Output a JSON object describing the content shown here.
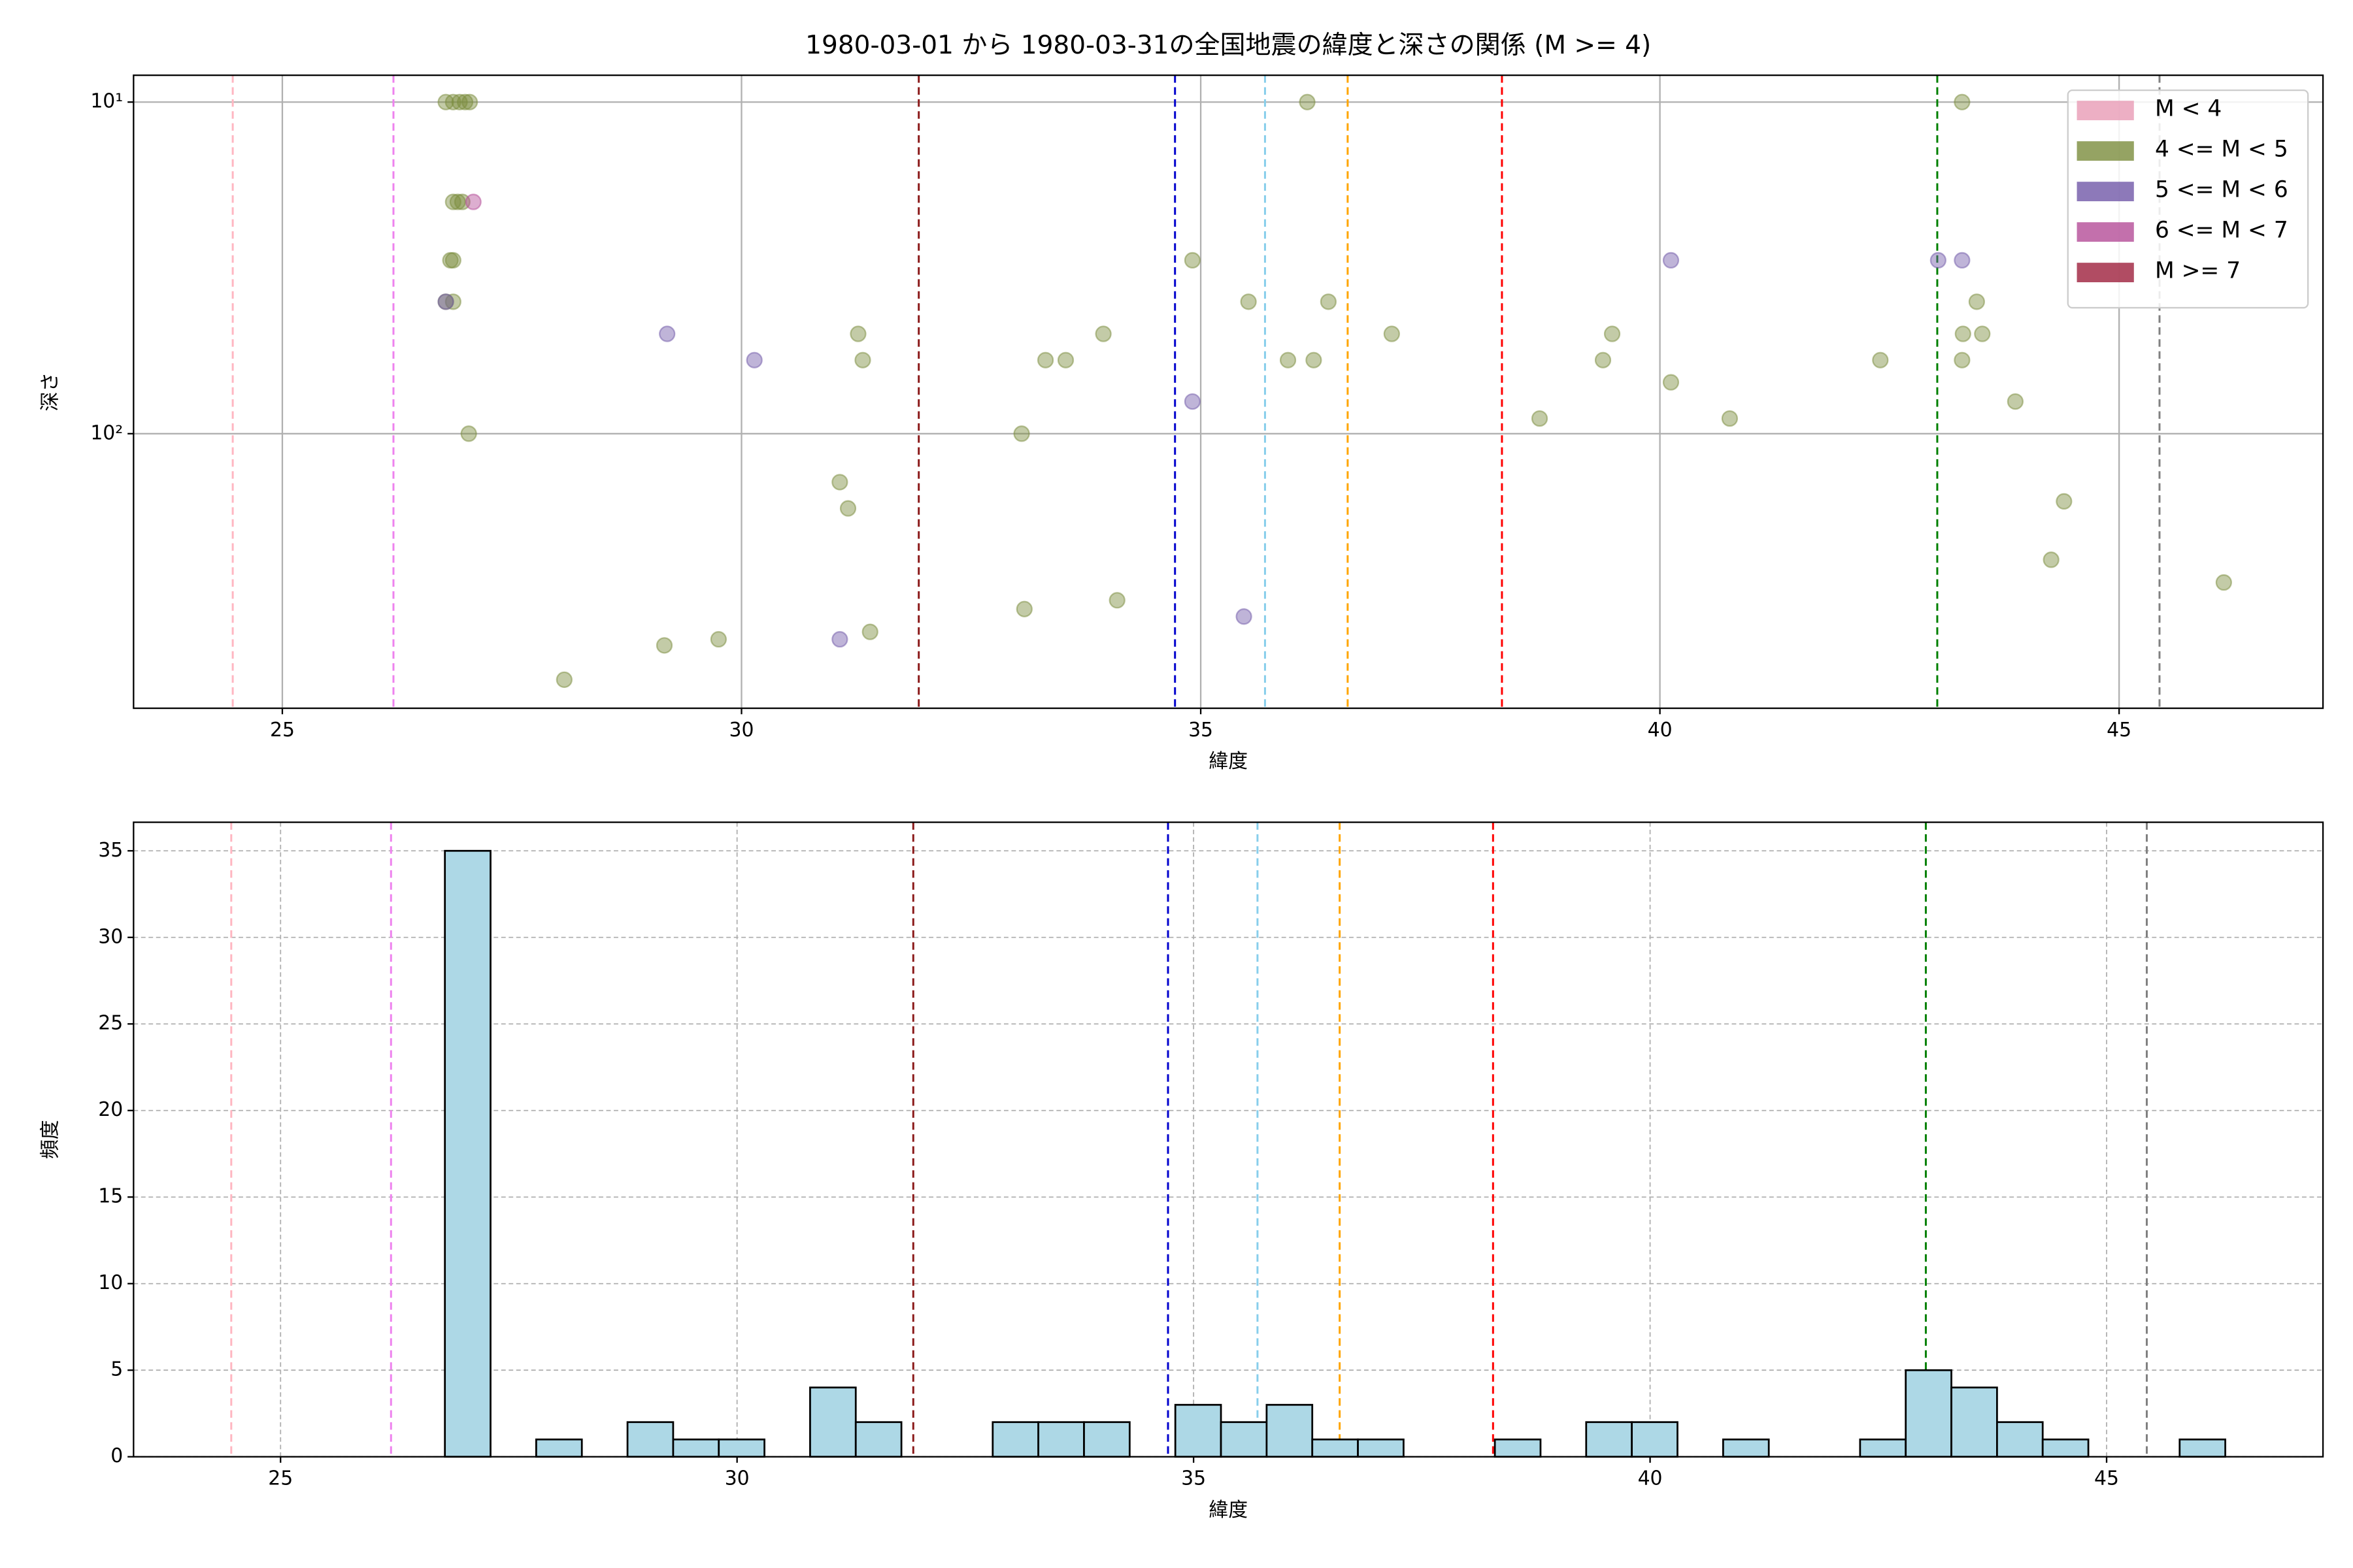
{
  "chart_data": [
    {
      "type": "scatter",
      "title": "1980-03-01 から 1980-03-31の全国地震の緯度と深さの関係 (M >= 4)",
      "x_label": "緯度",
      "y_label": "深さ",
      "xlim": [
        23.38,
        47.22
      ],
      "xticks": [
        25,
        30,
        35,
        40,
        45
      ],
      "ylim": [
        8.3,
        673
      ],
      "y_log": true,
      "y_inverted": true,
      "yticks": [
        {
          "value": 10,
          "label": "10¹"
        },
        {
          "value": 100,
          "label": "10²"
        }
      ],
      "grid": true,
      "legend": "upper right",
      "vlines": [
        {
          "x": 24.46,
          "color": "#ffb6c1"
        },
        {
          "x": 26.21,
          "color": "#ee82ee"
        },
        {
          "x": 31.93,
          "color": "#8b1a1a"
        },
        {
          "x": 34.72,
          "color": "#0000cd"
        },
        {
          "x": 35.7,
          "color": "#87ceeb"
        },
        {
          "x": 36.6,
          "color": "#ffa500"
        },
        {
          "x": 38.28,
          "color": "#ff0000"
        },
        {
          "x": 43.02,
          "color": "#007f00"
        },
        {
          "x": 45.44,
          "color": "#808080"
        }
      ],
      "series": [
        {
          "name": "M < 4",
          "color": "#e89bb5",
          "x": [],
          "values": []
        },
        {
          "name": "4 <= M < 5",
          "color": "#7a8c3c",
          "x": [
            26.78,
            26.86,
            26.93,
            26.99,
            27.04,
            26.86,
            26.91,
            26.96,
            26.83,
            26.86,
            26.78,
            26.86,
            27.03,
            36.16,
            43.29,
            34.91,
            35.52,
            36.39,
            31.27,
            31.32,
            33.94,
            37.08,
            39.48,
            33.31,
            33.53,
            35.95,
            36.23,
            39.38,
            42.4,
            43.29,
            43.3,
            43.51,
            43.45,
            40.12,
            38.69,
            40.76,
            43.87,
            33.05,
            31.07,
            31.16,
            44.4,
            44.26,
            46.14,
            34.09,
            33.08,
            31.4,
            29.75,
            29.16,
            28.07
          ],
          "values": [
            10,
            10,
            10,
            10,
            10,
            20,
            20,
            20,
            30,
            30,
            40,
            40,
            100,
            10,
            10,
            30,
            40,
            40,
            50,
            60,
            50,
            50,
            50,
            60,
            60,
            60,
            60,
            60,
            60,
            60,
            50,
            50,
            40,
            70,
            90,
            90,
            80,
            100,
            140,
            168,
            160,
            240,
            281,
            318,
            338,
            396,
            417,
            435,
            552
          ]
        },
        {
          "name": "5 <= M < 6",
          "color": "#7058a8",
          "x": [
            29.19,
            30.14,
            34.91,
            40.12,
            43.03,
            43.29,
            35.47,
            31.07,
            26.78
          ],
          "values": [
            50,
            60,
            80,
            30,
            30,
            30,
            356,
            417,
            40
          ]
        },
        {
          "name": "6 <= M < 7",
          "color": "#b44c97",
          "x": [
            27.08
          ],
          "values": [
            20
          ]
        },
        {
          "name": "M >= 7",
          "color": "#9e1f3c",
          "x": [],
          "values": []
        }
      ]
    },
    {
      "type": "histogram",
      "x_label": "緯度",
      "y_label": "頻度",
      "xlim": [
        23.39,
        47.37
      ],
      "xticks": [
        25,
        30,
        35,
        40,
        45
      ],
      "ylim": [
        0,
        36.65
      ],
      "yticks": [
        0,
        5,
        10,
        15,
        20,
        25,
        30,
        35
      ],
      "grid": true,
      "color": "#add8e6",
      "vlines": [
        {
          "x": 24.46,
          "color": "#ffb6c1"
        },
        {
          "x": 26.21,
          "color": "#ee82ee"
        },
        {
          "x": 31.93,
          "color": "#8b1a1a"
        },
        {
          "x": 34.72,
          "color": "#0000cd"
        },
        {
          "x": 35.7,
          "color": "#87ceeb"
        },
        {
          "x": 36.6,
          "color": "#ffa500"
        },
        {
          "x": 38.28,
          "color": "#ff0000"
        },
        {
          "x": 43.02,
          "color": "#007f00"
        },
        {
          "x": 45.44,
          "color": "#808080"
        }
      ],
      "bins": [
        26.8,
        27.3,
        27.8,
        28.3,
        28.8,
        29.3,
        29.8,
        30.3,
        30.8,
        31.3,
        31.8,
        32.3,
        32.8,
        33.3,
        33.8,
        34.3,
        34.8,
        35.3,
        35.8,
        36.3,
        36.8,
        37.3,
        37.8,
        38.3,
        38.8,
        39.3,
        39.8,
        40.3,
        40.8,
        41.3,
        41.8,
        42.3,
        42.8,
        43.3,
        43.8,
        44.3,
        44.8,
        45.3,
        45.8,
        46.3
      ],
      "values": [
        35,
        0,
        1,
        0,
        2,
        1,
        1,
        0,
        4,
        2,
        0,
        0,
        2,
        2,
        2,
        0,
        3,
        2,
        3,
        1,
        1,
        0,
        0,
        1,
        0,
        2,
        2,
        0,
        1,
        0,
        0,
        1,
        5,
        4,
        2,
        1,
        0,
        0,
        1
      ]
    }
  ]
}
